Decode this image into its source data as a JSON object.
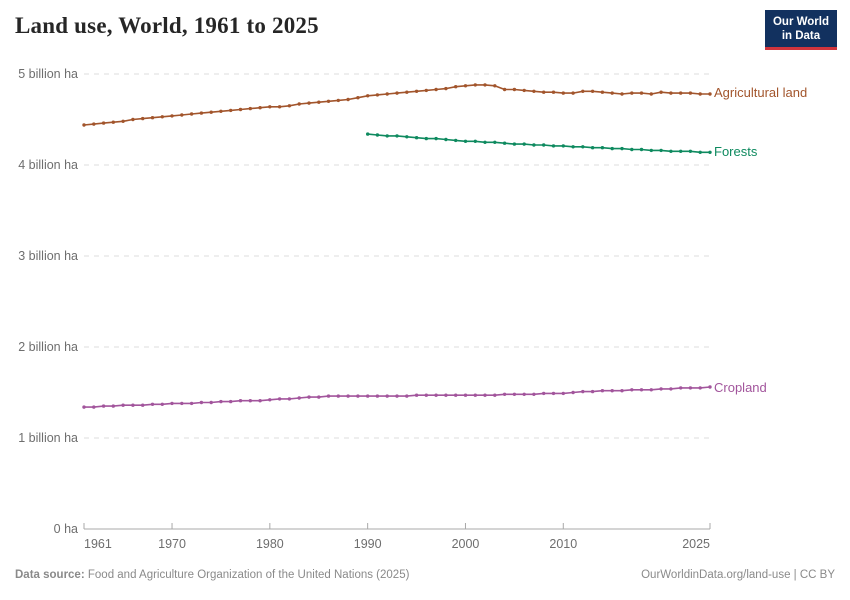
{
  "header": {
    "title": "Land use, World, 1961 to 2025"
  },
  "logo": {
    "line1": "Our World",
    "line2": "in Data",
    "bg_color": "#12315F",
    "accent_color": "#D0343C"
  },
  "footer": {
    "source_label": "Data source:",
    "source_text": "Food and Agriculture Organization of the United Nations (2025)",
    "link_text": "OurWorldinData.org/land-use | CC BY"
  },
  "chart_data": {
    "type": "line",
    "title": "Land use, World, 1961 to 2025",
    "unit": "billion ha",
    "x_range": [
      1961,
      2025
    ],
    "ylim": [
      0,
      5
    ],
    "grid": true,
    "legend_position": "right-edge-labels",
    "xticks": [
      1961,
      1970,
      1980,
      1990,
      2000,
      2010,
      2025
    ],
    "yticks": [
      {
        "value": 0,
        "label": "0 ha"
      },
      {
        "value": 1,
        "label": "1 billion ha"
      },
      {
        "value": 2,
        "label": "2 billion ha"
      },
      {
        "value": 3,
        "label": "3 billion ha"
      },
      {
        "value": 4,
        "label": "4 billion ha"
      },
      {
        "value": 5,
        "label": "5 billion ha"
      }
    ],
    "series": [
      {
        "name": "Agricultural land",
        "color": "#A2552C",
        "start_year": 1961,
        "values": [
          4.44,
          4.45,
          4.46,
          4.47,
          4.48,
          4.5,
          4.51,
          4.52,
          4.53,
          4.54,
          4.55,
          4.56,
          4.57,
          4.58,
          4.59,
          4.6,
          4.61,
          4.62,
          4.63,
          4.64,
          4.64,
          4.65,
          4.67,
          4.68,
          4.69,
          4.7,
          4.71,
          4.72,
          4.74,
          4.76,
          4.77,
          4.78,
          4.79,
          4.8,
          4.81,
          4.82,
          4.83,
          4.84,
          4.86,
          4.87,
          4.88,
          4.88,
          4.87,
          4.83,
          4.83,
          4.82,
          4.81,
          4.8,
          4.8,
          4.79,
          4.79,
          4.81,
          4.81,
          4.8,
          4.79,
          4.78,
          4.79,
          4.79,
          4.78,
          4.8,
          4.79,
          4.79,
          4.79,
          4.78,
          4.78
        ]
      },
      {
        "name": "Forests",
        "color": "#0E8A5F",
        "start_year": 1990,
        "values": [
          4.34,
          4.33,
          4.32,
          4.32,
          4.31,
          4.3,
          4.29,
          4.29,
          4.28,
          4.27,
          4.26,
          4.26,
          4.25,
          4.25,
          4.24,
          4.23,
          4.23,
          4.22,
          4.22,
          4.21,
          4.21,
          4.2,
          4.2,
          4.19,
          4.19,
          4.18,
          4.18,
          4.17,
          4.17,
          4.16,
          4.16,
          4.15,
          4.15,
          4.15,
          4.14,
          4.14
        ]
      },
      {
        "name": "Cropland",
        "color": "#A2559C",
        "start_year": 1961,
        "values": [
          1.34,
          1.34,
          1.35,
          1.35,
          1.36,
          1.36,
          1.36,
          1.37,
          1.37,
          1.38,
          1.38,
          1.38,
          1.39,
          1.39,
          1.4,
          1.4,
          1.41,
          1.41,
          1.41,
          1.42,
          1.43,
          1.43,
          1.44,
          1.45,
          1.45,
          1.46,
          1.46,
          1.46,
          1.46,
          1.46,
          1.46,
          1.46,
          1.46,
          1.46,
          1.47,
          1.47,
          1.47,
          1.47,
          1.47,
          1.47,
          1.47,
          1.47,
          1.47,
          1.48,
          1.48,
          1.48,
          1.48,
          1.49,
          1.49,
          1.49,
          1.5,
          1.51,
          1.51,
          1.52,
          1.52,
          1.52,
          1.53,
          1.53,
          1.53,
          1.54,
          1.54,
          1.55,
          1.55,
          1.55,
          1.56
        ]
      }
    ]
  }
}
